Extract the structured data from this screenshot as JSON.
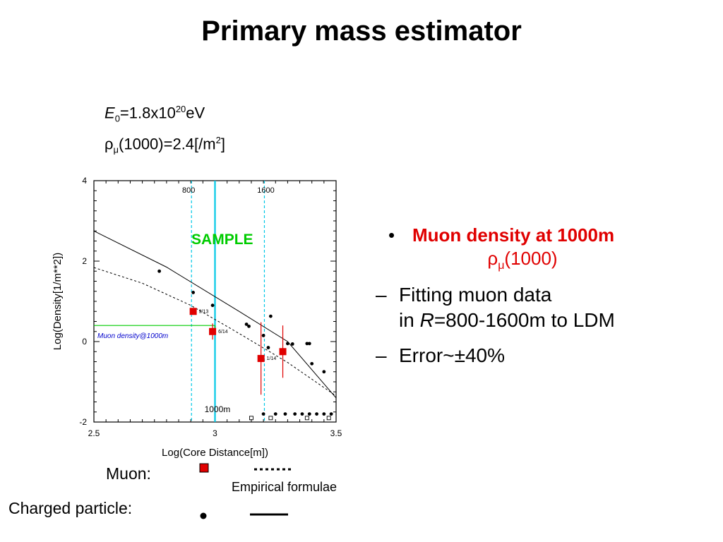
{
  "slide": {
    "title": "Primary mass estimator"
  },
  "params": {
    "energy_symbol": "E",
    "energy_sub": "0",
    "energy_value": "=1.8x10",
    "energy_exp": "20",
    "energy_unit": "eV",
    "rho_symbol": "ρ",
    "rho_sub": "μ",
    "rho_value": "(1000)=2.4[/m",
    "rho_exp": "2",
    "rho_close": "]"
  },
  "bullets": {
    "heading": "Muon density at 1000m",
    "heading_sub_symbol": "ρ",
    "heading_sub_index": "μ",
    "heading_sub_rest": "(1000)",
    "items": [
      {
        "line1": "Fitting muon data",
        "line2_pre": "in ",
        "line2_var": "R",
        "line2_rest": "=800-1600m to LDM"
      },
      {
        "line1": "Error~±40%"
      }
    ]
  },
  "legend": {
    "muon_label": "Muon:",
    "charged_label": "Charged particle:",
    "formula_label": "Empirical formulae"
  },
  "colors": {
    "red": "#e00000",
    "cyan": "#00c8e6",
    "green": "#00cc00",
    "blue": "#0000cc"
  },
  "chart_data": {
    "type": "scatter",
    "xlabel": "Log(Core Distance[m])",
    "ylabel": "Log(Density[1/m**2])",
    "xlim": [
      2.5,
      3.5
    ],
    "ylim": [
      -2,
      4
    ],
    "x_ticks": [
      "2.5",
      "3",
      "3.5"
    ],
    "y_ticks": [
      "-2",
      "0",
      "2",
      "4"
    ],
    "annotations": {
      "r800": "800",
      "r1600": "1600",
      "sample": "SAMPLE",
      "r1000": "1000m",
      "muon_density_label": "Muon density@1000m"
    },
    "muon_density_at_1000": 0.4,
    "vertical_lines": [
      {
        "x": 2.903,
        "style": "dashed",
        "color": "#00c8e6"
      },
      {
        "x": 3.0,
        "style": "solid",
        "color": "#00c8e6"
      },
      {
        "x": 3.204,
        "style": "dashed",
        "color": "#00c8e6"
      }
    ],
    "series": [
      {
        "name": "Muon",
        "marker": "square",
        "color": "#e00000",
        "points": [
          {
            "x": 2.91,
            "y": 0.75,
            "err": 0.05,
            "label": "9/13"
          },
          {
            "x": 2.99,
            "y": 0.25,
            "err": 0.2,
            "label": "6/14"
          },
          {
            "x": 3.19,
            "y": -0.42,
            "err": 0.9,
            "label": "1/14"
          },
          {
            "x": 3.28,
            "y": -0.25,
            "err": 0.65,
            "label": ""
          }
        ]
      },
      {
        "name": "Charged particle",
        "marker": "dot",
        "color": "#000000",
        "points": [
          [
            2.77,
            1.75
          ],
          [
            2.91,
            1.22
          ],
          [
            2.99,
            0.9
          ],
          [
            3.13,
            0.43
          ],
          [
            3.14,
            0.38
          ],
          [
            3.23,
            0.63
          ],
          [
            3.22,
            -0.15
          ],
          [
            3.2,
            0.15
          ],
          [
            3.32,
            -0.06
          ],
          [
            3.38,
            -0.05
          ],
          [
            3.4,
            -0.55
          ],
          [
            3.45,
            -0.75
          ],
          [
            3.39,
            -0.05
          ],
          [
            3.3,
            -0.05
          ],
          [
            3.2,
            -1.8
          ],
          [
            3.25,
            -1.8
          ],
          [
            3.29,
            -1.8
          ],
          [
            3.33,
            -1.8
          ],
          [
            3.36,
            -1.8
          ],
          [
            3.39,
            -1.8
          ],
          [
            3.42,
            -1.8
          ],
          [
            3.45,
            -1.8
          ],
          [
            3.48,
            -1.8
          ]
        ]
      },
      {
        "name": "Charged particle (no hit)",
        "marker": "open-square",
        "color": "#000000",
        "points": [
          [
            3.15,
            -1.9
          ],
          [
            3.23,
            -1.9
          ],
          [
            3.38,
            -1.9
          ],
          [
            3.47,
            -1.9
          ]
        ]
      }
    ],
    "fit_lines": [
      {
        "name": "Muon empirical formula",
        "style": "dashed",
        "points": [
          [
            2.5,
            1.84
          ],
          [
            2.7,
            1.45
          ],
          [
            2.9,
            0.9
          ],
          [
            3.1,
            0.2
          ],
          [
            3.3,
            -0.52
          ],
          [
            3.5,
            -1.35
          ]
        ]
      },
      {
        "name": "Charged particle empirical formula",
        "style": "solid",
        "points": [
          [
            2.5,
            2.75
          ],
          [
            2.8,
            1.85
          ],
          [
            3.1,
            0.75
          ],
          [
            3.3,
            0.0
          ],
          [
            3.5,
            -1.4
          ]
        ]
      }
    ]
  }
}
